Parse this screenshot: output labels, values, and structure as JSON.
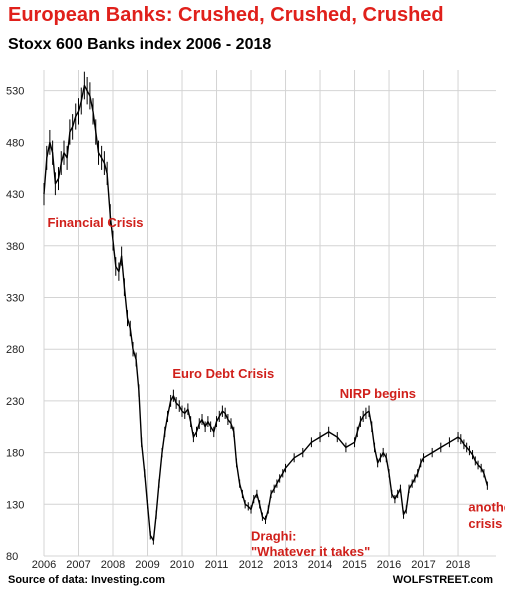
{
  "title": "European Banks: Crushed, Crushed, Crushed",
  "subtitle": "Stoxx 600 Banks index 2006 - 2018",
  "source": "Source of data: Investing.com",
  "brand": "WOLFSTREET.com",
  "colors": {
    "title": "#e0201b",
    "annotation": "#d0201b",
    "series": "#000000",
    "grid": "#d4d4d4"
  },
  "chart_data": {
    "type": "line",
    "title": "Stoxx 600 Banks index 2006 - 2018",
    "xlabel": "",
    "ylabel": "",
    "xlim": [
      2006.0,
      2019.1
    ],
    "ylim": [
      80,
      550
    ],
    "grid": true,
    "y_ticks": [
      80,
      130,
      180,
      230,
      280,
      330,
      380,
      430,
      480,
      530
    ],
    "x_ticks": [
      {
        "label": "2006",
        "x": 2006.0
      },
      {
        "label": "2007",
        "x": 2007.0
      },
      {
        "label": "2008",
        "x": 2008.0
      },
      {
        "label": "2009",
        "x": 2009.0
      },
      {
        "label": "2010",
        "x": 2010.0
      },
      {
        "label": "2011",
        "x": 2011.0
      },
      {
        "label": "2012",
        "x": 2012.0
      },
      {
        "label": "2013",
        "x": 2013.0
      },
      {
        "label": "2014",
        "x": 2014.0
      },
      {
        "label": "2015",
        "x": 2015.0
      },
      {
        "label": "2016",
        "x": 2016.0
      },
      {
        "label": "2017",
        "x": 2017.0
      },
      {
        "label": "2018",
        "x": 2018.0
      }
    ],
    "series": [
      {
        "name": "",
        "x": [
          2006.0,
          2006.08,
          2006.17,
          2006.25,
          2006.33,
          2006.42,
          2006.5,
          2006.58,
          2006.67,
          2006.75,
          2006.83,
          2006.92,
          2007.0,
          2007.08,
          2007.17,
          2007.25,
          2007.33,
          2007.42,
          2007.5,
          2007.58,
          2007.67,
          2007.75,
          2007.83,
          2007.92,
          2008.0,
          2008.08,
          2008.17,
          2008.25,
          2008.33,
          2008.42,
          2008.5,
          2008.58,
          2008.67,
          2008.75,
          2008.83,
          2008.92,
          2009.0,
          2009.08,
          2009.17,
          2009.25,
          2009.33,
          2009.42,
          2009.5,
          2009.58,
          2009.67,
          2009.75,
          2009.83,
          2009.92,
          2010.0,
          2010.08,
          2010.17,
          2010.25,
          2010.33,
          2010.42,
          2010.5,
          2010.58,
          2010.67,
          2010.75,
          2010.83,
          2010.92,
          2011.0,
          2011.08,
          2011.17,
          2011.25,
          2011.33,
          2011.42,
          2011.5,
          2011.58,
          2011.67,
          2011.75,
          2011.83,
          2011.92,
          2012.0,
          2012.08,
          2012.17,
          2012.25,
          2012.33,
          2012.42,
          2012.5,
          2012.58,
          2012.67,
          2012.75,
          2012.83,
          2012.92,
          2013.0,
          2013.25,
          2013.5,
          2013.75,
          2014.0,
          2014.25,
          2014.5,
          2014.75,
          2015.0,
          2015.08,
          2015.17,
          2015.25,
          2015.33,
          2015.42,
          2015.5,
          2015.58,
          2015.67,
          2015.75,
          2015.83,
          2015.92,
          2016.0,
          2016.08,
          2016.17,
          2016.25,
          2016.33,
          2016.42,
          2016.5,
          2016.58,
          2016.67,
          2016.75,
          2016.83,
          2016.92,
          2017.0,
          2017.25,
          2017.5,
          2017.75,
          2018.0,
          2018.08,
          2018.17,
          2018.25,
          2018.33,
          2018.42,
          2018.5,
          2018.58,
          2018.67,
          2018.75,
          2018.85
        ],
        "values": [
          430,
          465,
          480,
          470,
          440,
          445,
          460,
          470,
          465,
          490,
          495,
          505,
          510,
          520,
          535,
          530,
          525,
          510,
          490,
          470,
          465,
          460,
          450,
          410,
          385,
          360,
          355,
          370,
          340,
          310,
          300,
          280,
          270,
          240,
          190,
          160,
          130,
          100,
          95,
          120,
          150,
          180,
          200,
          215,
          230,
          235,
          228,
          225,
          220,
          218,
          222,
          210,
          195,
          200,
          208,
          212,
          205,
          210,
          205,
          200,
          210,
          215,
          220,
          218,
          212,
          208,
          200,
          170,
          150,
          140,
          130,
          128,
          125,
          135,
          140,
          130,
          118,
          115,
          125,
          140,
          145,
          150,
          155,
          160,
          165,
          175,
          180,
          190,
          195,
          200,
          195,
          185,
          190,
          200,
          210,
          215,
          218,
          220,
          205,
          185,
          170,
          175,
          180,
          175,
          160,
          140,
          135,
          140,
          145,
          120,
          125,
          145,
          150,
          155,
          160,
          170,
          175,
          180,
          185,
          190,
          195,
          193,
          188,
          185,
          182,
          178,
          172,
          168,
          165,
          160,
          148
        ]
      }
    ],
    "annotations": [
      {
        "text": "Financial Crisis",
        "x": 2006.1,
        "y": 398
      },
      {
        "text": "Euro Debt Crisis",
        "x": 2009.72,
        "y": 252
      },
      {
        "text": "NIRP begins",
        "x": 2014.57,
        "y": 233
      },
      {
        "text": "Draghi:",
        "x": 2012.0,
        "y": 95
      },
      {
        "text": "\"Whatever it takes\"",
        "x": 2012.0,
        "y": 80
      },
      {
        "text": "another",
        "x": 2018.3,
        "y": 123
      },
      {
        "text": "crisis",
        "x": 2018.3,
        "y": 107
      }
    ]
  }
}
